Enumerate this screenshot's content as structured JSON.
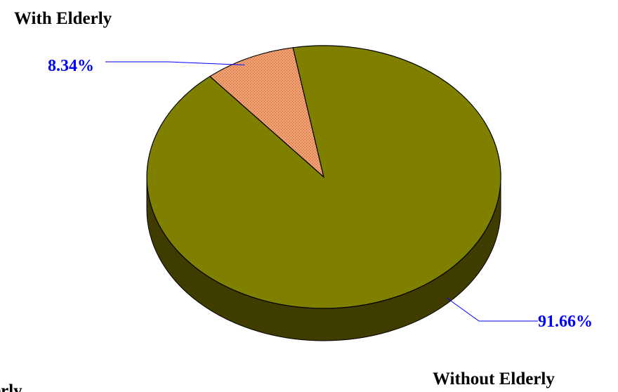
{
  "chart_data": {
    "type": "pie",
    "style": "3d",
    "title": "",
    "slices": [
      {
        "label": "With Elderly",
        "value": 8.34,
        "display": "8.34%",
        "color": "#F4A460",
        "pattern": "dotted"
      },
      {
        "label": "Without Elderly",
        "value": 91.66,
        "display": "91.66%",
        "color": "#808000"
      }
    ],
    "side_color": "#403C00",
    "label_color": "#0000FF",
    "legend_cutoff_text": "erly"
  }
}
